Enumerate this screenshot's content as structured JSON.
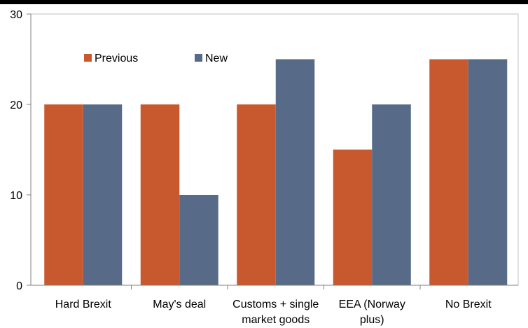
{
  "chart_data": {
    "type": "bar",
    "categories": [
      [
        "Hard Brexit"
      ],
      [
        "May's deal"
      ],
      [
        "Customs + single",
        "market goods"
      ],
      [
        "EEA (Norway",
        "plus)"
      ],
      [
        "No Brexit"
      ]
    ],
    "series": [
      {
        "name": "Previous",
        "values": [
          20,
          20,
          20,
          15,
          25
        ],
        "color": "#c8592e"
      },
      {
        "name": "New",
        "values": [
          20,
          10,
          25,
          20,
          25
        ],
        "color": "#576a87"
      }
    ],
    "ylim": [
      0,
      30
    ],
    "yticks": [
      0,
      10,
      20,
      30
    ],
    "grid": false,
    "legend_placement": "top-left"
  }
}
